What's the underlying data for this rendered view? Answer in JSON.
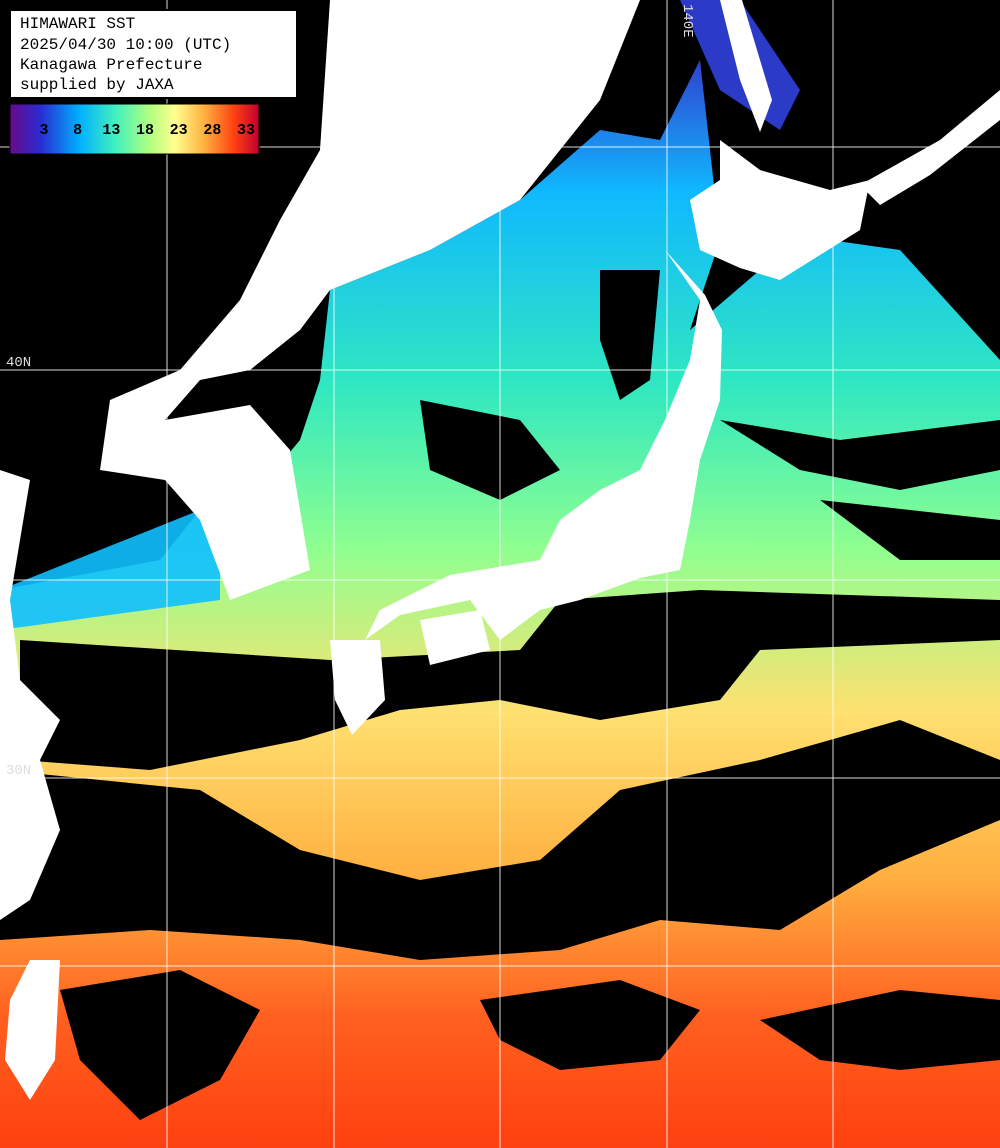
{
  "header": {
    "lines": [
      "HIMAWARI SST",
      "2025/04/30 10:00 (UTC)",
      "Kanagawa Prefecture",
      "supplied by JAXA"
    ]
  },
  "colorbar": {
    "ticks": [
      3,
      8,
      13,
      18,
      23,
      28,
      33
    ]
  },
  "grid_labels": {
    "lon": [
      "140E"
    ],
    "lat": [
      "40N",
      "30N"
    ]
  }
}
